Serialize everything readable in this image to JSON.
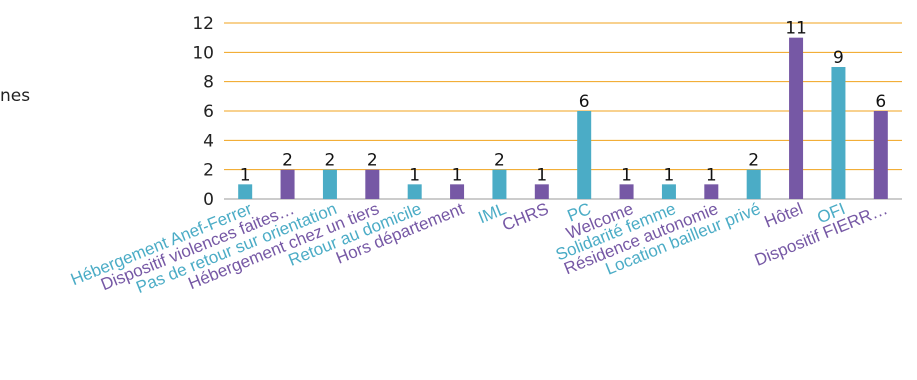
{
  "side_text": "nes",
  "colors": {
    "teal": "#4BACC6",
    "purple": "#7658A5",
    "grid": "#F0A31C",
    "axis": "#9a9a9a"
  },
  "chart_data": {
    "type": "bar",
    "title": "",
    "xlabel": "",
    "ylabel": "",
    "ylim": [
      0,
      12
    ],
    "yticks": [
      0,
      2,
      4,
      6,
      8,
      10,
      12
    ],
    "grid": true,
    "categories": [
      "Hébergement Anef-Ferrer",
      "Dispositif violences faites…",
      "Pas de retour sur orientation",
      "Hébergement chez un tiers",
      "Retour au domicile",
      "Hors département",
      "IML",
      "CHRS",
      "PC",
      "Welcome",
      "Solidarité femme",
      "Résidence autonomie",
      "Location bailleur privé",
      "Hôtel",
      "OFI",
      "Dispositif FIERR…"
    ],
    "values": [
      1,
      2,
      2,
      2,
      1,
      1,
      2,
      1,
      6,
      1,
      1,
      1,
      2,
      11,
      9,
      6
    ],
    "bar_colors": [
      "teal",
      "purple",
      "teal",
      "purple",
      "teal",
      "purple",
      "teal",
      "purple",
      "teal",
      "purple",
      "teal",
      "purple",
      "teal",
      "purple",
      "teal",
      "purple"
    ]
  }
}
